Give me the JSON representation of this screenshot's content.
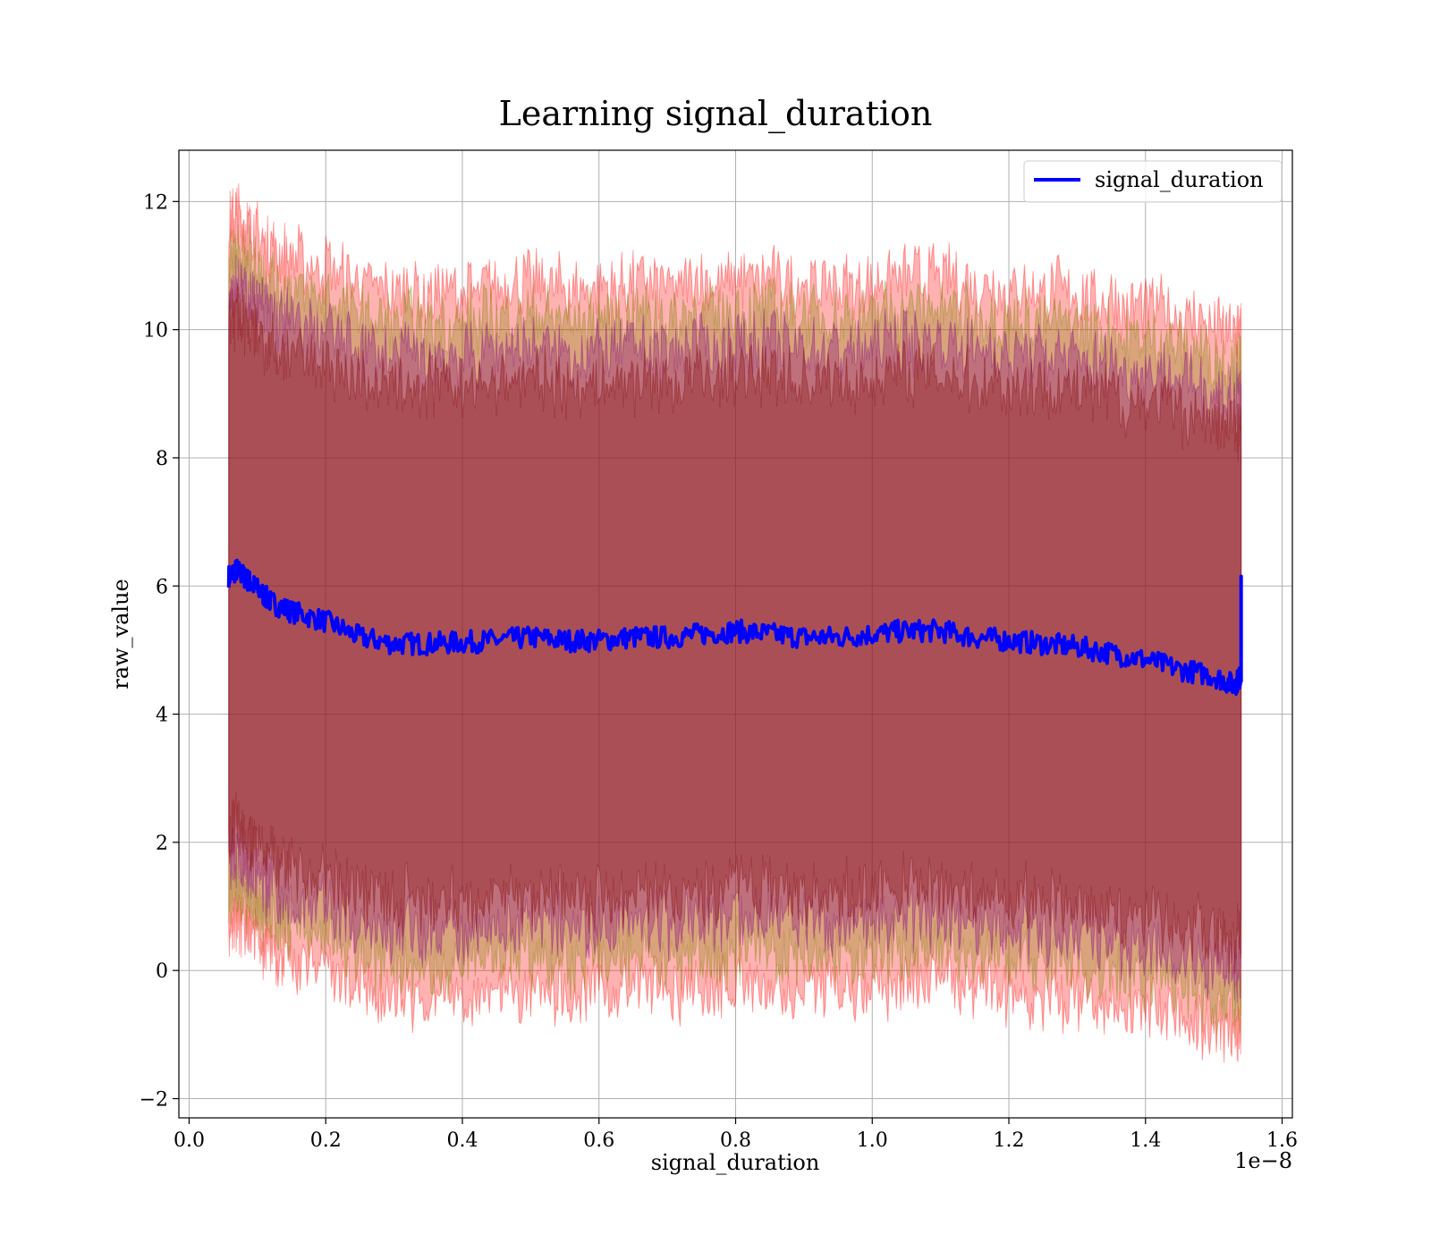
{
  "chart_data": {
    "type": "line",
    "title": "Learning signal_duration",
    "xlabel": "signal_duration",
    "ylabel": "raw_value",
    "x_offset_label": "1e−8",
    "xlim": [
      -0.015,
      1.615
    ],
    "ylim": [
      -2.3,
      12.8
    ],
    "x_ticks": [
      0.0,
      0.2,
      0.4,
      0.6,
      0.8,
      1.0,
      1.2,
      1.4,
      1.6
    ],
    "x_tick_labels": [
      "0.0",
      "0.2",
      "0.4",
      "0.6",
      "0.8",
      "1.0",
      "1.2",
      "1.4",
      "1.6"
    ],
    "y_ticks": [
      -2,
      0,
      2,
      4,
      6,
      8,
      10,
      12
    ],
    "y_tick_labels": [
      "−2",
      "0",
      "2",
      "4",
      "6",
      "8",
      "10",
      "12"
    ],
    "grid": true,
    "legend_position": "upper-right",
    "series": [
      {
        "name": "signal_duration",
        "color": "#0000ff",
        "x": [
          0.058,
          0.07,
          0.085,
          0.1,
          0.12,
          0.15,
          0.2,
          0.25,
          0.3,
          0.35,
          0.4,
          0.45,
          0.5,
          0.55,
          0.6,
          0.65,
          0.7,
          0.75,
          0.8,
          0.85,
          0.9,
          0.95,
          1.0,
          1.05,
          1.1,
          1.15,
          1.2,
          1.25,
          1.3,
          1.35,
          1.4,
          1.45,
          1.5,
          1.53,
          1.54
        ],
        "y": [
          6.15,
          6.25,
          6.1,
          5.95,
          5.75,
          5.6,
          5.45,
          5.2,
          5.1,
          5.1,
          5.12,
          5.15,
          5.2,
          5.15,
          5.15,
          5.2,
          5.2,
          5.25,
          5.3,
          5.25,
          5.2,
          5.2,
          5.25,
          5.3,
          5.3,
          5.2,
          5.15,
          5.1,
          5.05,
          4.95,
          4.85,
          4.7,
          4.6,
          4.45,
          4.6
        ]
      }
    ],
    "bands": [
      {
        "upper_offset": 5.5,
        "lower_offset": -5.5,
        "color": "#ff0000",
        "opacity": 0.3
      },
      {
        "upper_offset": 5.0,
        "lower_offset": -5.0,
        "color": "#808000",
        "opacity": 0.3
      },
      {
        "upper_offset": 4.5,
        "lower_offset": -4.5,
        "color": "#800080",
        "opacity": 0.3
      },
      {
        "upper_offset": 4.0,
        "lower_offset": -4.0,
        "color": "#800000",
        "opacity": 0.3
      }
    ],
    "final_spike": {
      "x": 1.54,
      "y": 6.15
    }
  }
}
